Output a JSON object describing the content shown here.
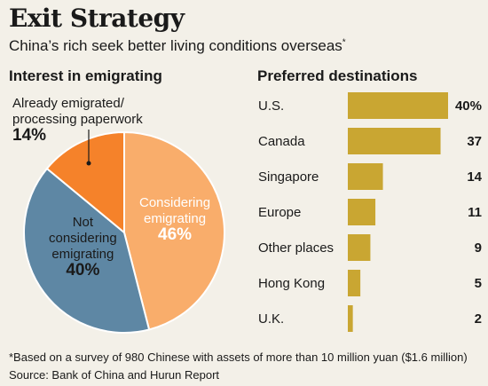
{
  "header": {
    "title": "Exit Strategy",
    "subtitle": "China’s rich seek better living conditions overseas",
    "subtitle_mark": "*"
  },
  "pie_section": {
    "heading": "Interest in emigrating"
  },
  "bar_section": {
    "heading": "Preferred destinations"
  },
  "chart_data": [
    {
      "type": "pie",
      "title": "Interest in emigrating",
      "slices": [
        {
          "label_line1": "Considering",
          "label_line2": "emigrating",
          "display": "46%",
          "value": 46,
          "color": "#f9ad6b"
        },
        {
          "label_line1": "Not",
          "label_line2": "considering",
          "label_line3": "emigrating",
          "display": "40%",
          "value": 40,
          "color": "#5e87a4"
        },
        {
          "label_line1": "Already emigrated/",
          "label_line2": "processing paperwork",
          "display": "14%",
          "value": 14,
          "color": "#f5822a"
        }
      ]
    },
    {
      "type": "bar",
      "orientation": "horizontal",
      "title": "Preferred destinations",
      "categories": [
        "U.S.",
        "Canada",
        "Singapore",
        "Europe",
        "Other places",
        "Hong Kong",
        "U.K."
      ],
      "values": [
        40,
        37,
        14,
        11,
        9,
        5,
        2
      ],
      "value_labels": [
        "40%",
        "37",
        "14",
        "11",
        "9",
        "5",
        "2"
      ],
      "xlim": [
        0,
        40
      ],
      "bar_color": "#c9a632",
      "grid": false
    }
  ],
  "footer": {
    "footnote": "*Based on a survey of 980 Chinese with assets of more than 10 million yuan ($1.6 million)",
    "source": "Source: Bank of China and Hurun Report"
  }
}
